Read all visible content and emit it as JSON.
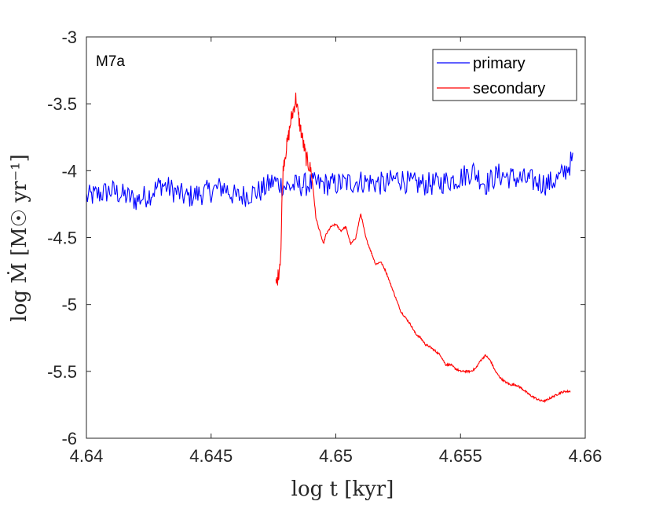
{
  "chart_data": {
    "type": "line",
    "annotation": "M7a",
    "xlabel": "log t [kyr]",
    "ylabel": "log Ṁ [M☉ yr⁻¹]",
    "xlim": [
      4.64,
      4.66
    ],
    "ylim": [
      -6,
      -3
    ],
    "x_ticks": [
      4.64,
      4.645,
      4.65,
      4.655,
      4.66
    ],
    "x_tick_labels": [
      "4.64",
      "4.645",
      "4.65",
      "4.655",
      "4.66"
    ],
    "y_ticks": [
      -6,
      -5.5,
      -5,
      -4.5,
      -4,
      -3.5,
      -3
    ],
    "y_tick_labels": [
      "-6",
      "-5.5",
      "-5",
      "-4.5",
      "-4",
      "-3.5",
      "-3"
    ],
    "grid": false,
    "legend_position": "top-right",
    "series": [
      {
        "name": "primary",
        "color": "#0000ff",
        "x": [
          4.64,
          4.641,
          4.642,
          4.6425,
          4.643,
          4.644,
          4.645,
          4.6455,
          4.646,
          4.647,
          4.6475,
          4.648,
          4.649,
          4.65,
          4.651,
          4.652,
          4.6525,
          4.653,
          4.654,
          4.655,
          4.6555,
          4.656,
          4.6565,
          4.657,
          4.658,
          4.6585,
          4.659,
          4.6595
        ],
        "y": [
          -4.2,
          -4.15,
          -4.22,
          -4.18,
          -4.1,
          -4.2,
          -4.15,
          -4.12,
          -4.2,
          -4.15,
          -4.08,
          -4.12,
          -4.1,
          -4.1,
          -4.08,
          -4.1,
          -4.05,
          -4.1,
          -4.1,
          -4.05,
          -4.0,
          -4.1,
          -4.03,
          -4.05,
          -4.08,
          -4.1,
          -4.05,
          -3.92
        ],
        "noise": 0.09
      },
      {
        "name": "secondary",
        "color": "#ff0000",
        "x": [
          4.6476,
          4.6477,
          4.6478,
          4.64785,
          4.6479,
          4.648,
          4.6481,
          4.6482,
          4.6483,
          4.6484,
          4.6485,
          4.6486,
          4.6487,
          4.6488,
          4.6489,
          4.649,
          4.6491,
          4.6492,
          4.6493,
          4.6494,
          4.6495,
          4.6496,
          4.6498,
          4.65,
          4.6502,
          4.6504,
          4.6506,
          4.6508,
          4.651,
          4.6512,
          4.6514,
          4.6516,
          4.6518,
          4.652,
          4.6522,
          4.6524,
          4.6526,
          4.6528,
          4.653,
          4.6532,
          4.6534,
          4.6536,
          4.6538,
          4.654,
          4.6542,
          4.6544,
          4.6546,
          4.6548,
          4.655,
          4.6552,
          4.6554,
          4.6556,
          4.6558,
          4.656,
          4.6562,
          4.6564,
          4.6566,
          4.6568,
          4.657,
          4.6572,
          4.6574,
          4.6576,
          4.6578,
          4.658,
          4.6582,
          4.6584,
          4.6586,
          4.6588,
          4.659,
          4.6592,
          4.6594
        ],
        "y": [
          -4.85,
          -4.78,
          -4.6,
          -4.15,
          -3.95,
          -3.85,
          -3.75,
          -3.62,
          -3.55,
          -3.45,
          -3.6,
          -3.7,
          -3.8,
          -3.9,
          -3.95,
          -4.0,
          -4.15,
          -4.35,
          -4.42,
          -4.48,
          -4.55,
          -4.48,
          -4.42,
          -4.4,
          -4.45,
          -4.42,
          -4.55,
          -4.5,
          -4.32,
          -4.5,
          -4.6,
          -4.7,
          -4.68,
          -4.75,
          -4.85,
          -4.95,
          -5.05,
          -5.1,
          -5.15,
          -5.22,
          -5.25,
          -5.3,
          -5.32,
          -5.35,
          -5.38,
          -5.45,
          -5.45,
          -5.48,
          -5.5,
          -5.5,
          -5.5,
          -5.48,
          -5.42,
          -5.38,
          -5.42,
          -5.5,
          -5.55,
          -5.58,
          -5.6,
          -5.6,
          -5.62,
          -5.65,
          -5.68,
          -5.7,
          -5.72,
          -5.72,
          -5.7,
          -5.68,
          -5.66,
          -5.65,
          -5.65
        ]
      }
    ]
  }
}
